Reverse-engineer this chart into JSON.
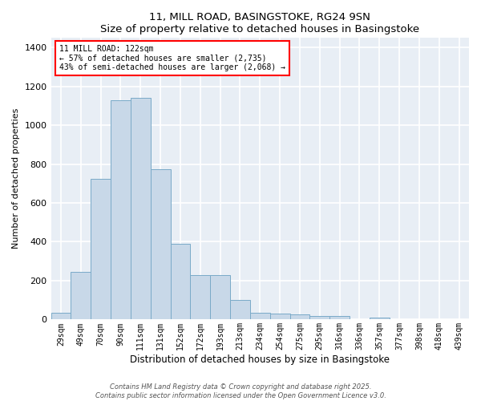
{
  "title": "11, MILL ROAD, BASINGSTOKE, RG24 9SN",
  "subtitle": "Size of property relative to detached houses in Basingstoke",
  "xlabel": "Distribution of detached houses by size in Basingstoke",
  "ylabel": "Number of detached properties",
  "categories": [
    "29sqm",
    "49sqm",
    "70sqm",
    "90sqm",
    "111sqm",
    "131sqm",
    "152sqm",
    "172sqm",
    "193sqm",
    "213sqm",
    "234sqm",
    "254sqm",
    "275sqm",
    "295sqm",
    "316sqm",
    "336sqm",
    "357sqm",
    "377sqm",
    "398sqm",
    "418sqm",
    "439sqm"
  ],
  "values": [
    35,
    245,
    725,
    1130,
    1140,
    775,
    390,
    230,
    230,
    100,
    35,
    30,
    25,
    20,
    18,
    0,
    10,
    0,
    0,
    0,
    0
  ],
  "bar_color": "#c8d8e8",
  "bar_edgecolor": "#7aaac8",
  "annotation_text": "11 MILL ROAD: 122sqm\n← 57% of detached houses are smaller (2,735)\n43% of semi-detached houses are larger (2,068) →",
  "annotation_box_edgecolor": "red",
  "annotation_box_facecolor": "white",
  "ylim": [
    0,
    1450
  ],
  "yticks": [
    0,
    200,
    400,
    600,
    800,
    1000,
    1200,
    1400
  ],
  "background_color": "#e8eef5",
  "grid_color": "white",
  "footer_line1": "Contains HM Land Registry data © Crown copyright and database right 2025.",
  "footer_line2": "Contains public sector information licensed under the Open Government Licence v3.0."
}
